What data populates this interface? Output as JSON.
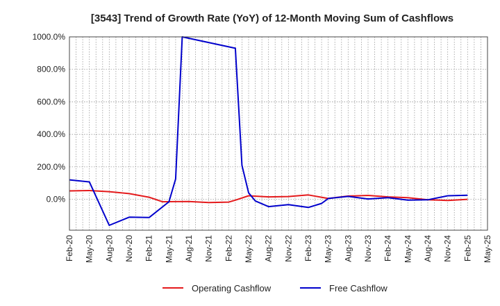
{
  "chart_data": {
    "type": "line",
    "title": "[3543]  Trend of Growth Rate (YoY) of 12-Month Moving Sum of Cashflows",
    "xlabel": "",
    "ylabel": "",
    "x_ticks": [
      "Feb-20",
      "May-20",
      "Aug-20",
      "Nov-20",
      "Feb-21",
      "May-21",
      "Aug-21",
      "Nov-21",
      "Feb-22",
      "May-22",
      "Aug-22",
      "Nov-22",
      "Feb-23",
      "May-23",
      "Aug-23",
      "Nov-23",
      "Feb-24",
      "May-24",
      "Aug-24",
      "Nov-24",
      "Feb-25",
      "May-25"
    ],
    "y_ticks": [
      "1000.0%",
      "800.0%",
      "600.0%",
      "400.0%",
      "200.0%",
      "0.0%"
    ],
    "y_tick_values": [
      1000,
      800,
      600,
      400,
      200,
      0
    ],
    "ylim": [
      -190,
      1000
    ],
    "grid": true,
    "legend_position": "bottom",
    "series": [
      {
        "name": "Operating Cashflow",
        "color": "#e41a1c",
        "points": [
          {
            "x": "Feb-20",
            "y": 52
          },
          {
            "x": "May-20",
            "y": 54
          },
          {
            "x": "Aug-20",
            "y": 47
          },
          {
            "x": "Nov-20",
            "y": 35
          },
          {
            "x": "Feb-21",
            "y": 13
          },
          {
            "x": "Apr-21",
            "y": -15
          },
          {
            "x": "Jun-21",
            "y": -14
          },
          {
            "x": "Aug-21",
            "y": -13
          },
          {
            "x": "Nov-21",
            "y": -20
          },
          {
            "x": "Feb-22",
            "y": -17
          },
          {
            "x": "Mar-22",
            "y": -5
          },
          {
            "x": "May-22",
            "y": 22
          },
          {
            "x": "Aug-22",
            "y": 15
          },
          {
            "x": "Nov-22",
            "y": 17
          },
          {
            "x": "Feb-23",
            "y": 27
          },
          {
            "x": "May-23",
            "y": 5
          },
          {
            "x": "Aug-23",
            "y": 20
          },
          {
            "x": "Nov-23",
            "y": 24
          },
          {
            "x": "Feb-24",
            "y": 15
          },
          {
            "x": "May-24",
            "y": 10
          },
          {
            "x": "Aug-24",
            "y": -3
          },
          {
            "x": "Nov-24",
            "y": -7
          },
          {
            "x": "Feb-25",
            "y": 0
          }
        ]
      },
      {
        "name": "Free Cashflow",
        "color": "#0000cc",
        "points": [
          {
            "x": "Feb-20",
            "y": 120
          },
          {
            "x": "May-20",
            "y": 107
          },
          {
            "x": "Aug-20",
            "y": -160
          },
          {
            "x": "Nov-20",
            "y": -110
          },
          {
            "x": "Feb-21",
            "y": -112
          },
          {
            "x": "May-21",
            "y": -15
          },
          {
            "x": "Jun-21",
            "y": 125
          },
          {
            "x": "Jul-21",
            "y": 1000
          },
          {
            "x": "Mar-22",
            "y": 930
          },
          {
            "x": "Apr-22",
            "y": 210
          },
          {
            "x": "May-22",
            "y": 40
          },
          {
            "x": "Jun-22",
            "y": -10
          },
          {
            "x": "Aug-22",
            "y": -45
          },
          {
            "x": "Nov-22",
            "y": -33
          },
          {
            "x": "Feb-23",
            "y": -50
          },
          {
            "x": "Apr-23",
            "y": -25
          },
          {
            "x": "May-23",
            "y": 5
          },
          {
            "x": "Aug-23",
            "y": 18
          },
          {
            "x": "Nov-23",
            "y": 2
          },
          {
            "x": "Feb-24",
            "y": 10
          },
          {
            "x": "May-24",
            "y": -5
          },
          {
            "x": "Aug-24",
            "y": -3
          },
          {
            "x": "Nov-24",
            "y": 22
          },
          {
            "x": "Feb-25",
            "y": 25
          }
        ]
      }
    ]
  }
}
